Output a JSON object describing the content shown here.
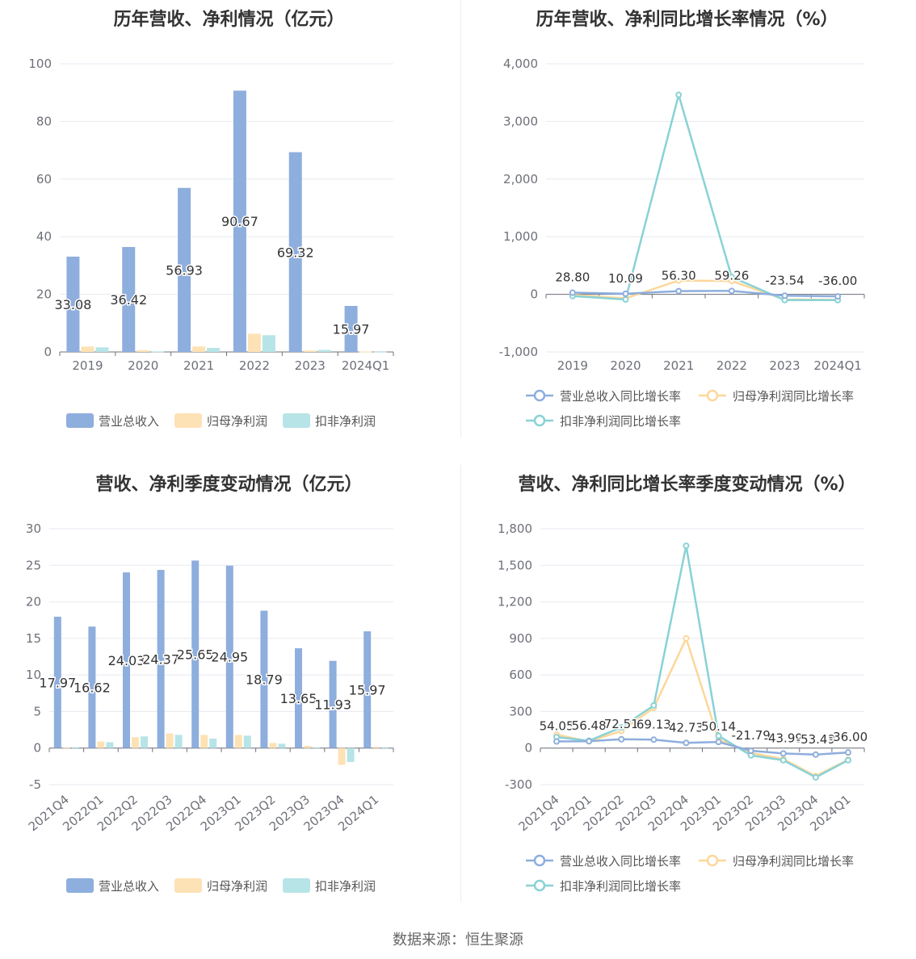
{
  "colors": {
    "revenue": "#8eaedd",
    "net_profit": "#fde2b6",
    "deducted_profit": "#b7e4e7",
    "revenue_line": "#8eaedd",
    "net_line": "#fcd79a",
    "deducted_line": "#89d2d5",
    "axis": "#6e7079",
    "grid": "#e6e9f0",
    "label": "#333333",
    "tick": "#6e7079"
  },
  "footer": {
    "source": "数据来源：恒生聚源"
  },
  "chart_data": [
    {
      "id": "annual-amounts",
      "type": "bar",
      "title": "历年营收、净利情况（亿元）",
      "categories": [
        "2019",
        "2020",
        "2021",
        "2022",
        "2023",
        "2024Q1"
      ],
      "ylim": [
        0,
        100
      ],
      "yticks": [
        "0",
        "20",
        "40",
        "60",
        "80",
        "100"
      ],
      "series": [
        {
          "name": "营业总收入",
          "values": [
            33.08,
            36.42,
            56.93,
            90.67,
            69.32,
            15.97
          ],
          "labels": [
            "33.08",
            "36.42",
            "56.93",
            "90.67",
            "69.32",
            "15.97"
          ]
        },
        {
          "name": "归母净利润",
          "values": [
            1.9,
            0.6,
            1.9,
            6.3,
            0.5,
            0.15
          ]
        },
        {
          "name": "扣非净利润",
          "values": [
            1.6,
            0.2,
            1.4,
            5.8,
            0.7,
            0.1
          ]
        }
      ],
      "legend": "bottom"
    },
    {
      "id": "annual-growth",
      "type": "line",
      "title": "历年营收、净利同比增长率情况（%）",
      "categories": [
        "2019",
        "2020",
        "2021",
        "2022",
        "2023",
        "2024Q1"
      ],
      "ylim": [
        -1000,
        4000
      ],
      "yticks": [
        "-1,000",
        "0",
        "1,000",
        "2,000",
        "3,000",
        "4,000"
      ],
      "series": [
        {
          "name": "营业总收入同比增长率",
          "values": [
            28.8,
            10.09,
            56.3,
            59.26,
            -23.54,
            -36.0
          ],
          "labels": [
            "28.80",
            "10.09",
            "56.30",
            "59.26",
            "-23.54",
            "-36.00"
          ]
        },
        {
          "name": "归母净利润同比增长率",
          "values": [
            -10,
            -70,
            240,
            230,
            -90,
            -95
          ]
        },
        {
          "name": "扣非净利润同比增长率",
          "values": [
            -30,
            -90,
            3460,
            300,
            -100,
            -100
          ]
        }
      ],
      "legend": "bottom"
    },
    {
      "id": "quarterly-amounts",
      "type": "bar",
      "title": "营收、净利季度变动情况（亿元）",
      "categories": [
        "2021Q4",
        "2022Q1",
        "2022Q2",
        "2022Q3",
        "2022Q4",
        "2023Q1",
        "2023Q2",
        "2023Q3",
        "2023Q4",
        "2024Q1"
      ],
      "ylim": [
        -5,
        30
      ],
      "yticks": [
        "-5",
        "0",
        "5",
        "10",
        "15",
        "20",
        "25",
        "30"
      ],
      "series": [
        {
          "name": "营业总收入",
          "values": [
            17.97,
            16.62,
            24.03,
            24.37,
            25.65,
            24.95,
            18.79,
            13.65,
            11.93,
            15.97
          ],
          "labels": [
            "17.97",
            "16.62",
            "24.03",
            "24.37",
            "25.65",
            "24.95",
            "18.79",
            "13.65",
            "11.93",
            "15.97"
          ]
        },
        {
          "name": "归母净利润",
          "values": [
            0.1,
            0.9,
            1.5,
            2.0,
            1.8,
            1.8,
            0.7,
            0.3,
            -2.3,
            0.15
          ]
        },
        {
          "name": "扣非净利润",
          "values": [
            0.1,
            0.8,
            1.6,
            1.8,
            1.3,
            1.7,
            0.6,
            0.1,
            -1.9,
            0.1
          ]
        }
      ],
      "legend": "bottom"
    },
    {
      "id": "quarterly-growth",
      "type": "line",
      "title": "营收、净利同比增长率季度变动情况（%）",
      "categories": [
        "2021Q4",
        "2022Q1",
        "2022Q2",
        "2022Q3",
        "2022Q4",
        "2023Q1",
        "2023Q2",
        "2023Q3",
        "2023Q4",
        "2024Q1"
      ],
      "ylim": [
        -300,
        1800
      ],
      "yticks": [
        "-300",
        "0",
        "300",
        "600",
        "900",
        "1,200",
        "1,500",
        "1,800"
      ],
      "series": [
        {
          "name": "营业总收入同比增长率",
          "values": [
            54.05,
            56.48,
            72.51,
            69.13,
            42.73,
            50.14,
            -21.79,
            -43.99,
            -53.49,
            -36.0
          ],
          "labels": [
            "54.05",
            "56.48",
            "72.51",
            "69.13",
            "42.73",
            "50.14",
            "-21.79",
            "-43.99",
            "-53.49",
            "-36.00"
          ]
        },
        {
          "name": "归母净利润同比增长率",
          "values": [
            110,
            55,
            140,
            330,
            900,
            70,
            -40,
            -90,
            -230,
            -95
          ]
        },
        {
          "name": "扣非净利润同比增长率",
          "values": [
            90,
            60,
            170,
            350,
            1660,
            100,
            -60,
            -100,
            -240,
            -100
          ]
        }
      ],
      "legend": "bottom"
    }
  ]
}
